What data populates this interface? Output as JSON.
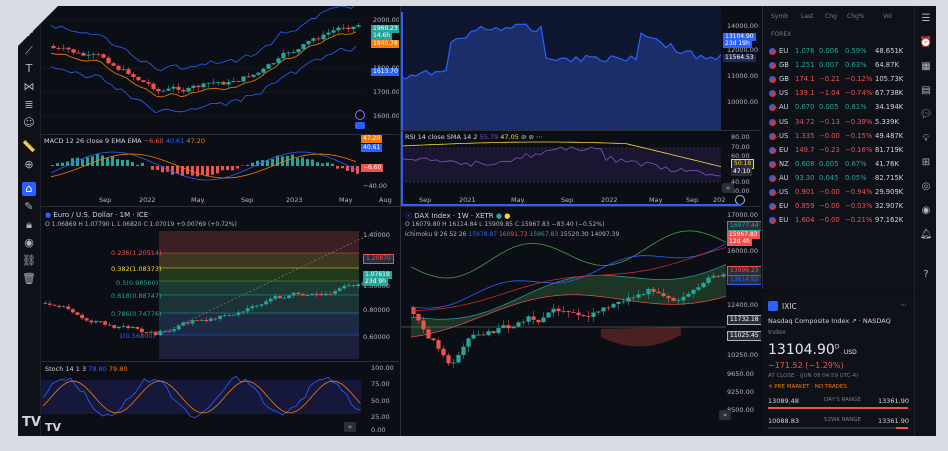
{
  "watchlist": {
    "header": {
      "col1": "Symb",
      "col2": "Last",
      "col3": "Chg",
      "col4": "Chg%",
      "col5": "Vol"
    },
    "section": "FOREX",
    "rows": [
      {
        "sym": "EU",
        "last": "1.076",
        "chg": "0.006",
        "pct": "0.59%",
        "vol": "48.651K",
        "dir": "up"
      },
      {
        "sym": "GB",
        "last": "1.251",
        "chg": "0.007",
        "pct": "0.63%",
        "vol": "64.87K",
        "dir": "up"
      },
      {
        "sym": "GB",
        "last": "174.1",
        "chg": "−0.21",
        "pct": "−0.12%",
        "vol": "105.73K",
        "dir": "down"
      },
      {
        "sym": "US",
        "last": "139.1",
        "chg": "−1.04",
        "pct": "−0.74%",
        "vol": "67.738K",
        "dir": "down"
      },
      {
        "sym": "AU",
        "last": "0.670",
        "chg": "0.005",
        "pct": "0.81%",
        "vol": "34.194K",
        "dir": "up"
      },
      {
        "sym": "US",
        "last": "34.72",
        "chg": "−0.13",
        "pct": "−0.39%",
        "vol": "5.339K",
        "dir": "down"
      },
      {
        "sym": "US",
        "last": "1.335",
        "chg": "−0.00",
        "pct": "−0.15%",
        "vol": "49.487K",
        "dir": "down"
      },
      {
        "sym": "EU",
        "last": "149.7",
        "chg": "−0.23",
        "pct": "−0.16%",
        "vol": "81.719K",
        "dir": "down"
      },
      {
        "sym": "NZ",
        "last": "0.608",
        "chg": "0.005",
        "pct": "0.67%",
        "vol": "41.76K",
        "dir": "up"
      },
      {
        "sym": "AU",
        "last": "93.30",
        "chg": "0.045",
        "pct": "0.05%",
        "vol": "82.715K",
        "dir": "up"
      },
      {
        "sym": "US",
        "last": "0.901",
        "chg": "−0.00",
        "pct": "−0.94%",
        "vol": "29.909K",
        "dir": "down"
      },
      {
        "sym": "EU",
        "last": "0.859",
        "chg": "−0.00",
        "pct": "−0.03%",
        "vol": "32.907K",
        "dir": "down"
      },
      {
        "sym": "EU",
        "last": "1.604",
        "chg": "−0.00",
        "pct": "−0.21%",
        "vol": "97.162K",
        "dir": "down"
      }
    ]
  },
  "detail": {
    "symbol": "IXIC",
    "name": "Nasdaq Composite Index",
    "exchange": "· NASDAQ",
    "type": "Index",
    "price": "13104.90",
    "price_sup": "D",
    "currency": "USD",
    "change": "−171.52 (−1.29%)",
    "close_note": "AT CLOSE · (JUN 08 04:59 UTC-4)",
    "premarket": "PRE MARKET · NO TRADES",
    "day_low": "13089.48",
    "day_label": "DAY'S RANGE",
    "day_high": "13361.90",
    "wk_low": "10088.83",
    "wk_label": "52WK RANGE",
    "wk_high": "13361.90"
  },
  "chart_tl": {
    "price_ticks": [
      "2000.00",
      "1800.00",
      "1700.00",
      "1600.00"
    ],
    "tag1": "1960.23",
    "tag1b": "14.6h",
    "tag2": "1840.78",
    "tag3": "1613.70",
    "macd_label": "MACD 12 26 close 9 EMA EMA",
    "macd_v1": "−6.60",
    "macd_v2": "40.61",
    "macd_v3": "47.20",
    "macd_ticks": [
      "47.20",
      "40.61",
      "−6.60",
      "−40.00"
    ],
    "time_labels": [
      "Sep",
      "2022",
      "May",
      "Sep",
      "2023",
      "May",
      "Aug"
    ]
  },
  "chart_tr": {
    "price_ticks": [
      "14000.00",
      "12000.00",
      "11000.00",
      "10000.00"
    ],
    "tag1": "13104.90",
    "tag1b": "23d 19h",
    "tag2": "11564.53",
    "rsi_label": "RSI 14 close SMA 14 2",
    "rsi_v1": "55.79",
    "rsi_v2": "47.05",
    "rsi_ticks": [
      "80.00",
      "70.00",
      "60.00",
      "50.18",
      "47.10",
      "40.00",
      "30.00",
      "20.00"
    ],
    "time_labels": [
      "Sep",
      "2021",
      "May",
      "Sep",
      "2022",
      "May",
      "Sep",
      "202"
    ]
  },
  "chart_bl": {
    "title": "Euro / U.S. Dollar · 1M · ICE",
    "ohlc": "O 1.06869  H 1.07790  L 1.06820  C 1.07019  +0.00769 (+0.72%)",
    "fib": [
      "0.236(1.20514)",
      "0.382(1.08373)",
      "0.5(0.98560)",
      "0.618(0.88747)",
      "0.786(0.74776)",
      "1(0.56800)"
    ],
    "price_ticks": [
      "1.40000",
      "1.20870",
      "1.00000",
      "0.80000",
      "0.60000"
    ],
    "tag1": "1.07619",
    "tag1b": "23d 9h",
    "stoch_label": "Stoch 14 1 3",
    "stoch_v1": "79.80",
    "stoch_v2": "79.80",
    "stoch_ticks": [
      "100.00",
      "75.00",
      "50.00",
      "25.00",
      "0.00"
    ]
  },
  "chart_br": {
    "title": "DAX Index · 1W · XETR",
    "ohlc": "O 16079.80  H 16114.84  L 15909.85  C 15967.83  −83.40 (−0.52%)",
    "ichimoku": "Ichimoku 9 26 52 26",
    "ich_v1": "15978.87",
    "ich_v2": "16091.73",
    "ich_v3": "15967.83",
    "ich_v4": "15520.30",
    "ich_v5": "14097.39",
    "price_ticks": [
      "17000.00",
      "16000.00",
      "15000.00",
      "14000.00",
      "13000.00",
      "12400.00",
      "11000.00",
      "10250.00",
      "9650.00",
      "9250.00",
      "8500.00"
    ],
    "tag1": "15967.83",
    "tag1b": "12d 4h",
    "tag2": "16977.44",
    "tag3": "13999.23",
    "tag4": "13614.92",
    "tag5": "11732.18",
    "tag6": "11025.45"
  },
  "colors": {
    "up": "#26a69a",
    "down": "#ef5350",
    "accent": "#2962ff",
    "bg": "#0c0e15"
  }
}
